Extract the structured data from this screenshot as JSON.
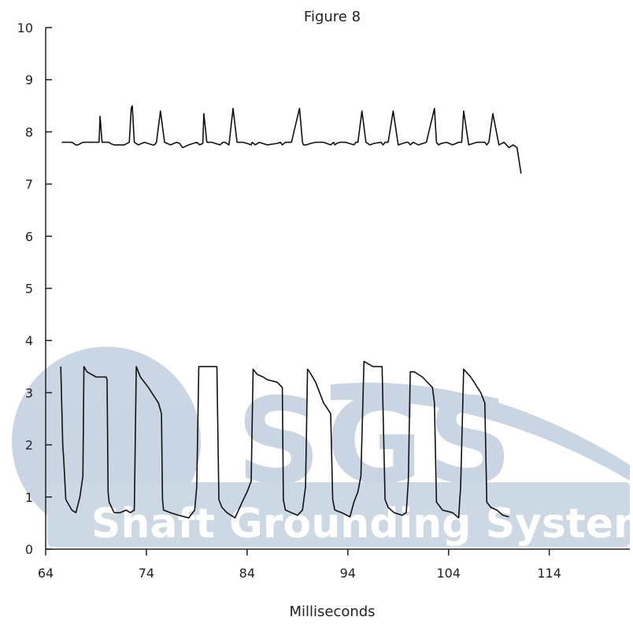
{
  "chart_data": {
    "type": "line",
    "title": "Figure 8",
    "xlabel": "Milliseconds",
    "ylabel": "",
    "xlim": [
      64,
      122
    ],
    "ylim": [
      0,
      10
    ],
    "xticks": [
      64,
      74,
      84,
      94,
      104,
      114
    ],
    "yticks": [
      0,
      1,
      2,
      3,
      4,
      5,
      6,
      7,
      8,
      9,
      10
    ],
    "grid": false,
    "series": [
      {
        "color": "#111111",
        "x": [
          65.6,
          65.7,
          66.0,
          66.3,
          66.6,
          67.0,
          67.2,
          67.7,
          67.75,
          68.2,
          68.8,
          69.3,
          69.4,
          69.6,
          70.3,
          70.4,
          70.8,
          71.2,
          71.8,
          72.3,
          72.5,
          72.6,
          72.8,
          73.2,
          73.8,
          74.6,
          74.8,
          75.0,
          75.4,
          75.8,
          76.4,
          77.0,
          77.3,
          77.4,
          77.6,
          78.2,
          79.0,
          79.3,
          79.6,
          79.7,
          80.0,
          80.5,
          81.3,
          81.6,
          81.8,
          82.2,
          82.6,
          83.0,
          83.6,
          84.0,
          84.4,
          84.5,
          84.8,
          85.2,
          86.0,
          87.0,
          87.3,
          87.5,
          87.8,
          88.4,
          89.2,
          89.5,
          89.6,
          89.9,
          90.3,
          90.8,
          91.6,
          92.3,
          92.6,
          92.7,
          92.9,
          93.2,
          93.8,
          94.6,
          94.8,
          95.0,
          95.4,
          95.8,
          96.2,
          96.6,
          97.3,
          97.5,
          97.7,
          98.0,
          98.5,
          99.0,
          99.8,
          100.0,
          100.2,
          100.5,
          101.0,
          101.8,
          102.6,
          102.8,
          103.0,
          103.3,
          103.8,
          104.4,
          105.0,
          105.3,
          105.5,
          106.0,
          106.8,
          107.6,
          107.8,
          108.0,
          108.4,
          109.0,
          109.5,
          110.0,
          110.4,
          110.8,
          111.2
        ],
        "y": [
          7.8,
          7.8,
          7.8,
          7.8,
          7.8,
          7.75,
          7.75,
          7.8,
          7.8,
          7.8,
          7.8,
          7.8,
          8.3,
          7.8,
          7.8,
          7.78,
          7.75,
          7.75,
          7.75,
          7.8,
          8.45,
          8.5,
          7.8,
          7.75,
          7.8,
          7.75,
          7.75,
          7.8,
          8.4,
          7.8,
          7.75,
          7.8,
          7.78,
          7.75,
          7.7,
          7.75,
          7.8,
          7.75,
          7.78,
          8.35,
          7.8,
          7.8,
          7.75,
          7.8,
          7.8,
          7.75,
          8.45,
          7.8,
          7.8,
          7.78,
          7.75,
          7.8,
          7.75,
          7.8,
          7.75,
          7.78,
          7.8,
          7.75,
          7.8,
          7.8,
          8.45,
          7.8,
          7.75,
          7.75,
          7.78,
          7.8,
          7.8,
          7.75,
          7.8,
          7.75,
          7.78,
          7.8,
          7.8,
          7.75,
          7.8,
          7.8,
          8.4,
          7.8,
          7.75,
          7.78,
          7.8,
          7.75,
          7.8,
          7.8,
          8.4,
          7.75,
          7.8,
          7.8,
          7.75,
          7.8,
          7.75,
          7.8,
          8.45,
          7.8,
          7.75,
          7.78,
          7.8,
          7.75,
          7.8,
          7.8,
          8.4,
          7.75,
          7.8,
          7.8,
          7.75,
          7.8,
          8.35,
          7.75,
          7.8,
          7.7,
          7.75,
          7.7,
          7.2
        ]
      },
      {
        "color": "#111111",
        "x": [
          65.5,
          65.7,
          65.8,
          66.0,
          66.6,
          67.0,
          67.4,
          67.7,
          67.8,
          68.1,
          69.0,
          70.0,
          70.1,
          70.2,
          70.3,
          70.8,
          71.4,
          72.0,
          72.4,
          72.8,
          73.0,
          73.2,
          73.4,
          74.2,
          75.2,
          75.5,
          75.6,
          75.7,
          76.4,
          77.2,
          78.2,
          78.8,
          79.0,
          79.2,
          79.4,
          80.2,
          81.0,
          81.2,
          81.5,
          82.0,
          82.8,
          83.5,
          84.0,
          84.4,
          84.6,
          85.0,
          85.6,
          86.0,
          87.0,
          87.5,
          87.6,
          87.8,
          88.4,
          89.0,
          89.5,
          89.8,
          90.0,
          90.2,
          90.8,
          91.6,
          92.3,
          92.5,
          92.7,
          93.4,
          94.2,
          94.6,
          95.0,
          95.3,
          95.6,
          96.5,
          97.4,
          97.7,
          98.0,
          98.6,
          99.4,
          99.8,
          100.0,
          100.2,
          100.6,
          101.4,
          102.4,
          102.6,
          102.8,
          103.4,
          104.4,
          105.0,
          105.2,
          105.5,
          106.2,
          107.2,
          107.6,
          107.8,
          108.2,
          108.8,
          109.4,
          110.0
        ],
        "y": [
          3.5,
          2.0,
          1.7,
          0.95,
          0.75,
          0.7,
          1.0,
          1.4,
          3.5,
          3.4,
          3.3,
          3.3,
          3.25,
          1.1,
          0.9,
          0.7,
          0.7,
          0.75,
          0.7,
          0.75,
          3.5,
          3.4,
          3.3,
          3.1,
          2.8,
          2.6,
          0.95,
          0.75,
          0.7,
          0.65,
          0.6,
          0.75,
          1.2,
          3.5,
          3.5,
          3.5,
          3.5,
          0.95,
          0.8,
          0.7,
          0.6,
          0.9,
          1.1,
          1.3,
          3.45,
          3.35,
          3.3,
          3.25,
          3.2,
          3.1,
          0.95,
          0.75,
          0.7,
          0.65,
          0.75,
          1.2,
          3.45,
          3.4,
          3.2,
          2.8,
          2.6,
          0.95,
          0.75,
          0.7,
          0.62,
          0.9,
          1.1,
          1.4,
          3.6,
          3.5,
          3.5,
          0.95,
          0.8,
          0.7,
          0.65,
          0.7,
          1.3,
          3.4,
          3.4,
          3.3,
          3.1,
          2.8,
          0.9,
          0.75,
          0.7,
          0.6,
          1.2,
          3.45,
          3.3,
          3.0,
          2.8,
          0.9,
          0.8,
          0.75,
          0.65,
          0.62
        ]
      }
    ]
  },
  "watermark": {
    "brand": "SGS",
    "tagline": "Shaft Grounding Systems",
    "color": "#3f6c9c"
  }
}
